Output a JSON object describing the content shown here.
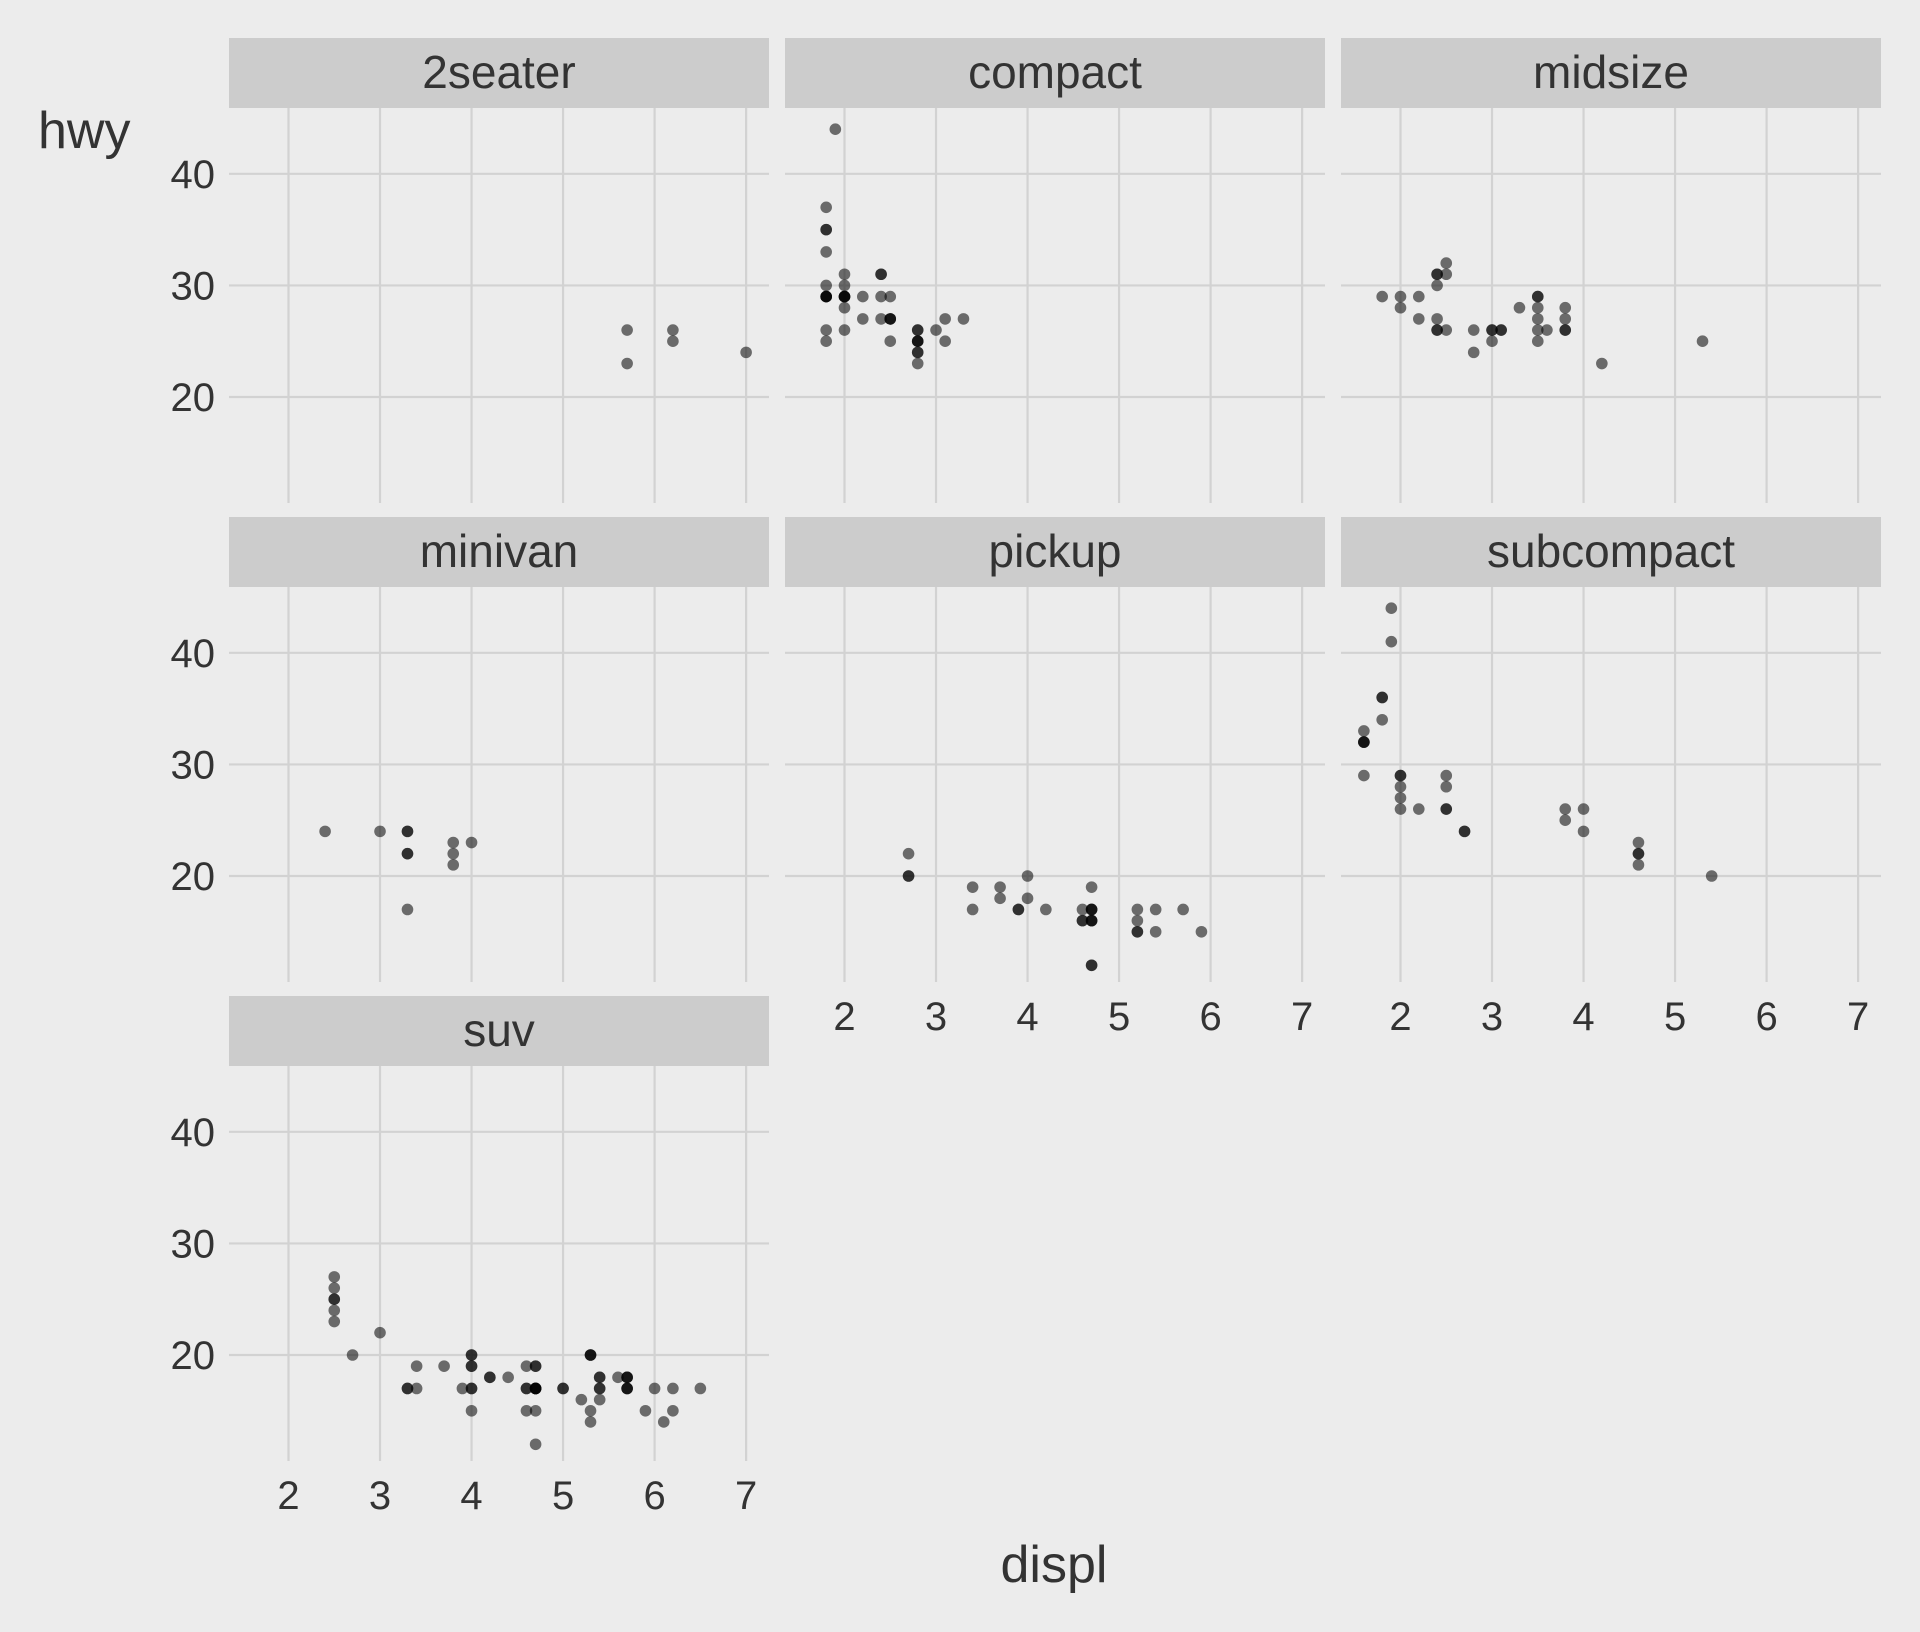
{
  "colors": {
    "background": "#ececec",
    "strip_fill": "#cccccc",
    "grid": "#d2d2d2",
    "point": "#000000"
  },
  "chart_data": {
    "type": "scatter",
    "facet_by": "class",
    "xlabel": "displ",
    "ylabel": "hwy",
    "xlim": [
      1.35,
      7.25
    ],
    "ylim": [
      10.5,
      45.9
    ],
    "x_ticks": [
      2,
      3,
      4,
      5,
      6,
      7
    ],
    "y_ticks": [
      20,
      30,
      40
    ],
    "point_alpha": 0.55,
    "panels": [
      {
        "name": "2seater",
        "points": [
          [
            5.7,
            26
          ],
          [
            5.7,
            23
          ],
          [
            6.2,
            26
          ],
          [
            6.2,
            25
          ],
          [
            7.0,
            24
          ]
        ]
      },
      {
        "name": "compact",
        "points": [
          [
            1.8,
            29
          ],
          [
            1.8,
            29
          ],
          [
            2.0,
            31
          ],
          [
            2.0,
            30
          ],
          [
            2.8,
            26
          ],
          [
            2.8,
            26
          ],
          [
            3.1,
            27
          ],
          [
            1.8,
            26
          ],
          [
            1.8,
            25
          ],
          [
            2.0,
            28
          ],
          [
            2.0,
            29
          ],
          [
            2.8,
            25
          ],
          [
            2.8,
            25
          ],
          [
            3.1,
            25
          ],
          [
            2.2,
            27
          ],
          [
            2.2,
            29
          ],
          [
            2.4,
            31
          ],
          [
            2.4,
            31
          ],
          [
            3.0,
            26
          ],
          [
            3.3,
            27
          ],
          [
            1.8,
            29
          ],
          [
            1.8,
            29
          ],
          [
            2.0,
            29
          ],
          [
            2.0,
            29
          ],
          [
            2.8,
            24
          ],
          [
            2.8,
            24
          ],
          [
            2.8,
            23
          ],
          [
            1.9,
            44
          ],
          [
            1.8,
            37
          ],
          [
            1.8,
            35
          ],
          [
            1.8,
            35
          ],
          [
            1.8,
            33
          ],
          [
            2.0,
            26
          ],
          [
            2.4,
            27
          ],
          [
            2.5,
            27
          ],
          [
            2.5,
            25
          ],
          [
            2.5,
            29
          ],
          [
            2.4,
            29
          ],
          [
            1.8,
            30
          ],
          [
            2.0,
            29
          ],
          [
            2.8,
            25
          ],
          [
            2.5,
            27
          ],
          [
            2.5,
            27
          ]
        ]
      },
      {
        "name": "midsize",
        "points": [
          [
            2.8,
            26
          ],
          [
            3.1,
            26
          ],
          [
            4.2,
            23
          ],
          [
            5.3,
            25
          ],
          [
            2.4,
            27
          ],
          [
            2.4,
            30
          ],
          [
            2.5,
            32
          ],
          [
            2.5,
            31
          ],
          [
            3.3,
            28
          ],
          [
            3.5,
            28
          ],
          [
            3.5,
            29
          ],
          [
            3.8,
            26
          ],
          [
            3.8,
            26
          ],
          [
            3.8,
            28
          ],
          [
            2.4,
            31
          ],
          [
            2.4,
            31
          ],
          [
            3.5,
            26
          ],
          [
            3.5,
            27
          ],
          [
            1.8,
            29
          ],
          [
            2.0,
            29
          ],
          [
            2.0,
            28
          ],
          [
            2.2,
            27
          ],
          [
            2.2,
            29
          ],
          [
            2.4,
            26
          ],
          [
            2.4,
            26
          ],
          [
            3.0,
            26
          ],
          [
            3.0,
            26
          ],
          [
            3.5,
            25
          ],
          [
            3.6,
            26
          ],
          [
            3.0,
            25
          ],
          [
            3.1,
            26
          ],
          [
            2.8,
            24
          ],
          [
            3.8,
            27
          ],
          [
            3.5,
            29
          ],
          [
            2.5,
            26
          ]
        ]
      },
      {
        "name": "minivan",
        "points": [
          [
            2.4,
            24
          ],
          [
            3.0,
            24
          ],
          [
            3.3,
            22
          ],
          [
            3.3,
            22
          ],
          [
            3.3,
            24
          ],
          [
            3.3,
            24
          ],
          [
            3.3,
            17
          ],
          [
            3.8,
            22
          ],
          [
            3.8,
            21
          ],
          [
            3.8,
            23
          ],
          [
            4.0,
            23
          ]
        ]
      },
      {
        "name": "pickup",
        "points": [
          [
            2.7,
            20
          ],
          [
            2.7,
            20
          ],
          [
            2.7,
            22
          ],
          [
            3.4,
            17
          ],
          [
            3.4,
            19
          ],
          [
            3.7,
            18
          ],
          [
            3.7,
            19
          ],
          [
            3.9,
            17
          ],
          [
            3.9,
            17
          ],
          [
            4.0,
            20
          ],
          [
            4.0,
            18
          ],
          [
            4.2,
            17
          ],
          [
            4.6,
            17
          ],
          [
            4.6,
            16
          ],
          [
            4.7,
            16
          ],
          [
            4.7,
            19
          ],
          [
            4.7,
            12
          ],
          [
            4.7,
            17
          ],
          [
            4.7,
            17
          ],
          [
            4.7,
            16
          ],
          [
            5.2,
            15
          ],
          [
            5.2,
            17
          ],
          [
            5.2,
            16
          ],
          [
            5.2,
            15
          ],
          [
            5.4,
            17
          ],
          [
            5.4,
            15
          ],
          [
            5.7,
            17
          ],
          [
            5.9,
            15
          ],
          [
            4.7,
            12
          ],
          [
            4.6,
            16
          ],
          [
            4.7,
            17
          ],
          [
            4.7,
            16
          ]
        ]
      },
      {
        "name": "subcompact",
        "points": [
          [
            1.6,
            33
          ],
          [
            1.6,
            32
          ],
          [
            1.6,
            32
          ],
          [
            1.6,
            29
          ],
          [
            1.6,
            32
          ],
          [
            1.8,
            34
          ],
          [
            1.8,
            36
          ],
          [
            1.8,
            36
          ],
          [
            2.0,
            29
          ],
          [
            2.0,
            26
          ],
          [
            2.0,
            27
          ],
          [
            2.0,
            28
          ],
          [
            2.0,
            29
          ],
          [
            1.9,
            44
          ],
          [
            1.9,
            41
          ],
          [
            2.2,
            26
          ],
          [
            2.5,
            26
          ],
          [
            2.5,
            29
          ],
          [
            2.5,
            28
          ],
          [
            2.5,
            26
          ],
          [
            2.7,
            24
          ],
          [
            2.7,
            24
          ],
          [
            3.8,
            26
          ],
          [
            3.8,
            25
          ],
          [
            4.0,
            26
          ],
          [
            4.0,
            24
          ],
          [
            4.6,
            21
          ],
          [
            4.6,
            22
          ],
          [
            4.6,
            23
          ],
          [
            4.6,
            22
          ],
          [
            5.4,
            20
          ]
        ]
      },
      {
        "name": "suv",
        "points": [
          [
            5.3,
            20
          ],
          [
            5.3,
            15
          ],
          [
            5.3,
            20
          ],
          [
            5.7,
            17
          ],
          [
            6.0,
            17
          ],
          [
            5.7,
            17
          ],
          [
            5.7,
            18
          ],
          [
            6.2,
            15
          ],
          [
            6.2,
            17
          ],
          [
            6.5,
            17
          ],
          [
            3.7,
            19
          ],
          [
            4.7,
            19
          ],
          [
            4.7,
            17
          ],
          [
            4.7,
            17
          ],
          [
            5.7,
            18
          ],
          [
            6.1,
            14
          ],
          [
            4.0,
            19
          ],
          [
            4.2,
            18
          ],
          [
            4.4,
            18
          ],
          [
            4.6,
            17
          ],
          [
            5.4,
            17
          ],
          [
            5.4,
            18
          ],
          [
            5.4,
            18
          ],
          [
            4.0,
            15
          ],
          [
            4.0,
            19
          ],
          [
            4.6,
            19
          ],
          [
            5.0,
            17
          ],
          [
            4.2,
            18
          ],
          [
            4.7,
            12
          ],
          [
            4.7,
            17
          ],
          [
            5.2,
            16
          ],
          [
            5.7,
            17
          ],
          [
            5.9,
            15
          ],
          [
            4.7,
            19
          ],
          [
            4.7,
            15
          ],
          [
            4.7,
            17
          ],
          [
            5.4,
            16
          ],
          [
            4.0,
            17
          ],
          [
            4.0,
            20
          ],
          [
            4.6,
            17
          ],
          [
            5.0,
            17
          ],
          [
            3.3,
            17
          ],
          [
            3.3,
            17
          ],
          [
            4.0,
            17
          ],
          [
            5.6,
            18
          ],
          [
            2.5,
            23
          ],
          [
            2.5,
            25
          ],
          [
            2.5,
            26
          ],
          [
            2.5,
            24
          ],
          [
            2.5,
            27
          ],
          [
            2.5,
            25
          ],
          [
            2.7,
            20
          ],
          [
            3.4,
            19
          ],
          [
            3.4,
            17
          ],
          [
            4.0,
            20
          ],
          [
            3.0,
            22
          ],
          [
            3.9,
            17
          ],
          [
            4.6,
            15
          ],
          [
            5.3,
            14
          ],
          [
            5.3,
            20
          ],
          [
            5.4,
            17
          ],
          [
            4.7,
            17
          ],
          [
            5.7,
            18
          ]
        ]
      }
    ]
  }
}
